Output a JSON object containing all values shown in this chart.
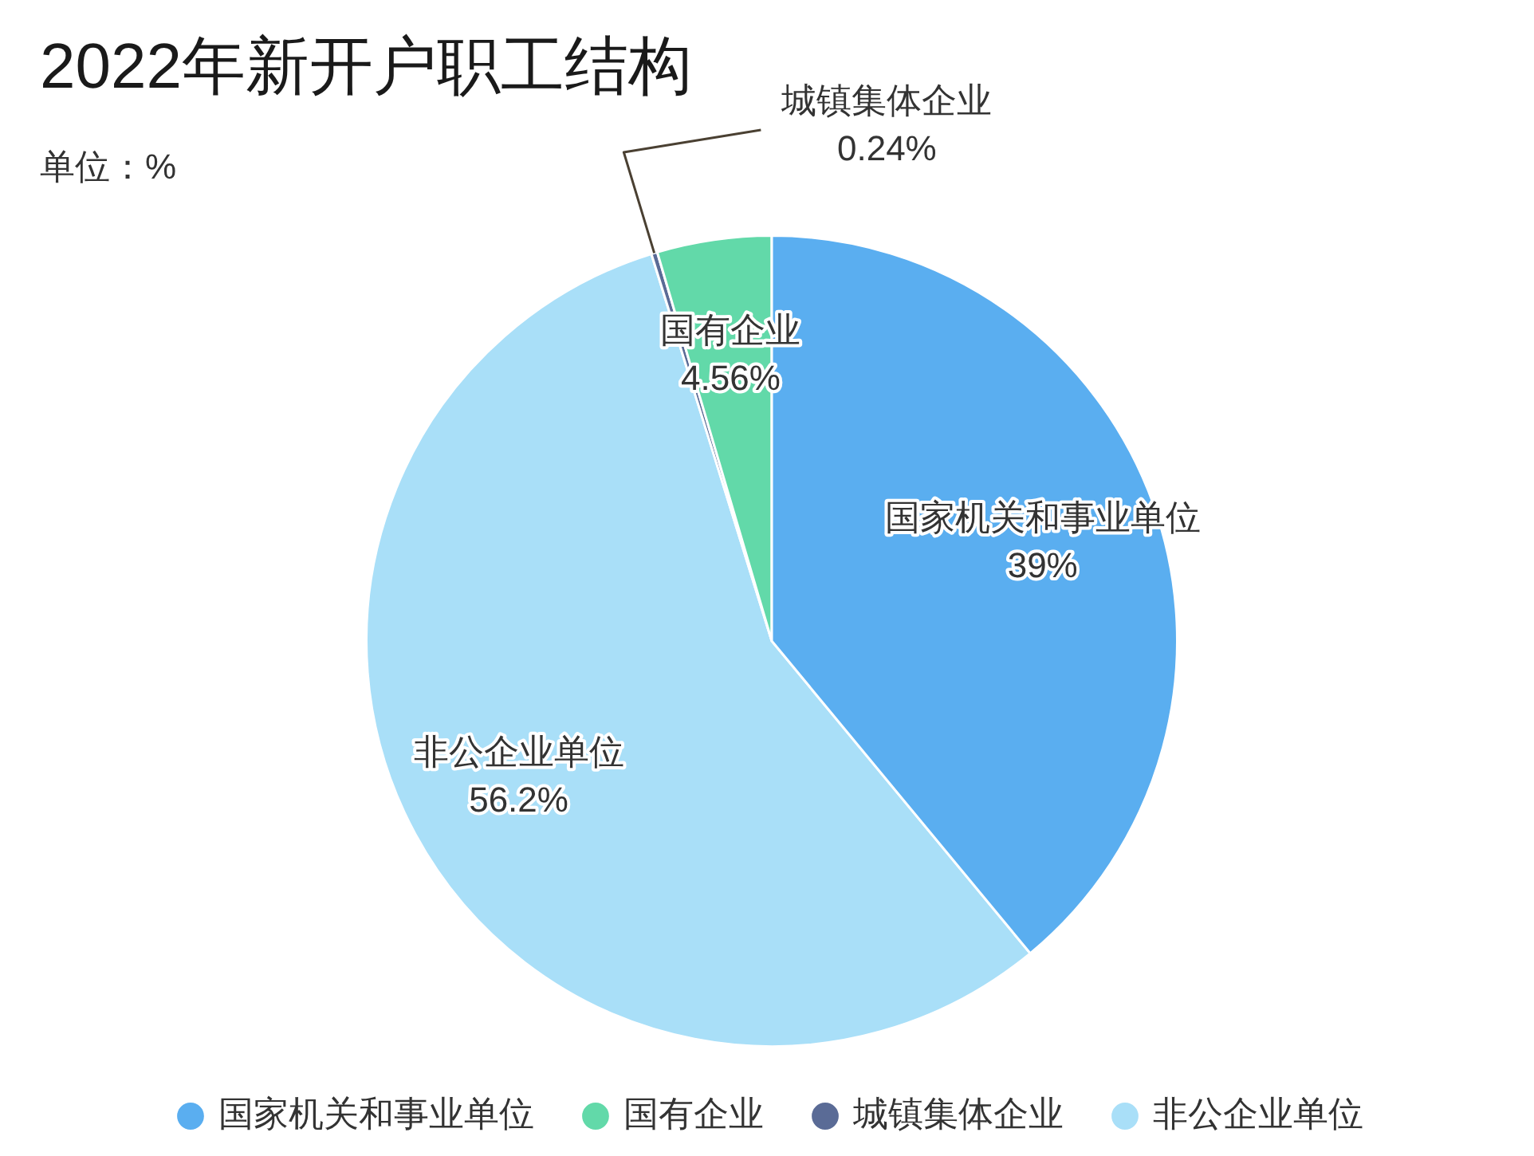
{
  "chart_data": {
    "type": "pie",
    "title": "2022年新开户职工结构",
    "subtitle": "单位：%",
    "categories": [
      "国家机关和事业单位",
      "国有企业",
      "城镇集体企业",
      "非公企业单位"
    ],
    "values": [
      39,
      4.56,
      0.24,
      56.2
    ],
    "colors": [
      "#5aaef0",
      "#62d9a9",
      "#5a6b96",
      "#a9dff8"
    ],
    "value_labels": [
      "39%",
      "4.56%",
      "0.24%",
      "56.2%"
    ],
    "legend": "bottom"
  }
}
